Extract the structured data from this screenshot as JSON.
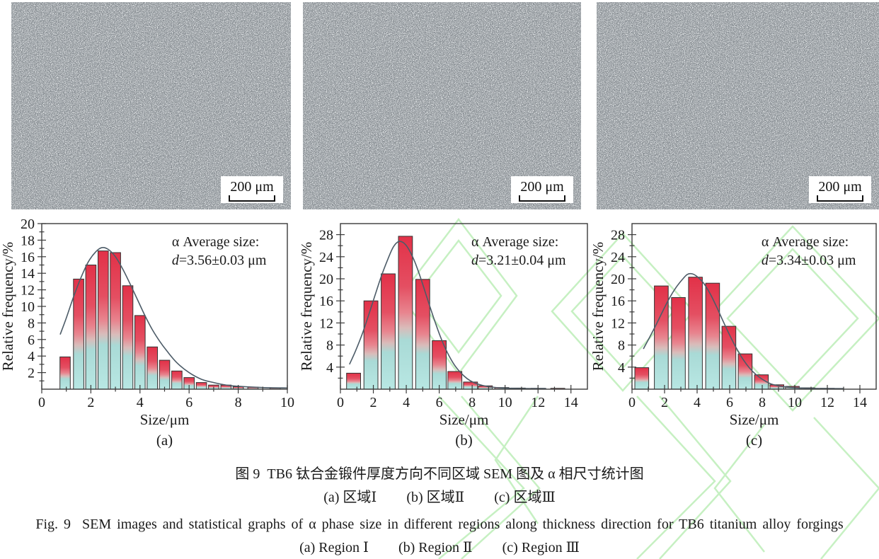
{
  "figure": {
    "zh_title": "图 9  TB6 钛合金锻件厚度方向不同区域 SEM 图及 α 相尺寸统计图",
    "zh_sub_items": [
      "(a) 区域Ⅰ",
      "(b) 区域Ⅱ",
      "(c) 区域Ⅲ"
    ],
    "en_title": "Fig. 9  SEM images and statistical graphs of α phase size in different regions along thickness direction for TB6 titanium alloy forgings",
    "en_sub_items": [
      "(a) Region Ⅰ",
      "(b) Region Ⅱ",
      "(c) Region Ⅲ"
    ]
  },
  "sem_images": [
    {
      "region": "区域Ⅰ",
      "scale_label": "200 μm"
    },
    {
      "region": "区域Ⅱ",
      "scale_label": "200 μm"
    },
    {
      "region": "区域Ⅲ",
      "scale_label": "200 μm"
    }
  ],
  "colors": {
    "bar_top": "#e23148",
    "bar_mid": "#e8858f",
    "bar_bottom": "#b8e7e3",
    "curve": "#4d5c68",
    "axis": "#3a3a3a",
    "text": "#1a1a1a",
    "watermark": "#bdeeb8",
    "sem_gray": "#878d92"
  },
  "chart_data": [
    {
      "type": "bar",
      "panel": "(a)",
      "xlabel": "Size/μm",
      "ylabel": "Relative frequency/%",
      "annotation": {
        "line1": "α Average size:",
        "d": "d",
        "value": "=3.56±0.03 μm"
      },
      "xlim": [
        0,
        10
      ],
      "ylim": [
        0,
        20
      ],
      "xticks": [
        0,
        2,
        4,
        6,
        8,
        10
      ],
      "yticks": [
        2,
        4,
        6,
        8,
        10,
        12,
        14,
        16,
        18,
        20
      ],
      "x_minor": [
        1,
        3,
        5,
        7,
        9
      ],
      "y_minor": [
        1,
        3,
        5,
        7,
        9,
        11,
        13,
        15,
        17,
        19
      ],
      "grid": false,
      "bar_width": 0.42,
      "bars": [
        [
          0.95,
          3.9
        ],
        [
          1.5,
          13.3
        ],
        [
          2.0,
          15.0
        ],
        [
          2.5,
          16.7
        ],
        [
          3.0,
          16.5
        ],
        [
          3.5,
          12.5
        ],
        [
          4.0,
          8.9
        ],
        [
          4.5,
          5.1
        ],
        [
          5.0,
          3.5
        ],
        [
          5.5,
          2.2
        ],
        [
          6.0,
          1.4
        ],
        [
          6.5,
          0.8
        ],
        [
          7.0,
          0.5
        ],
        [
          7.5,
          0.5
        ],
        [
          8.0,
          0.3
        ],
        [
          8.6,
          0.25
        ],
        [
          9.5,
          0.15
        ]
      ],
      "curve": [
        [
          0.75,
          6.6
        ],
        [
          1.0,
          8.6
        ],
        [
          1.3,
          11.2
        ],
        [
          1.6,
          13.5
        ],
        [
          1.9,
          15.4
        ],
        [
          2.2,
          16.6
        ],
        [
          2.45,
          17.1
        ],
        [
          2.7,
          16.9
        ],
        [
          3.0,
          16.0
        ],
        [
          3.3,
          14.5
        ],
        [
          3.6,
          12.7
        ],
        [
          3.9,
          10.8
        ],
        [
          4.2,
          8.9
        ],
        [
          4.5,
          7.2
        ],
        [
          4.8,
          5.8
        ],
        [
          5.1,
          4.6
        ],
        [
          5.5,
          3.2
        ],
        [
          6.0,
          2.0
        ],
        [
          6.5,
          1.2
        ],
        [
          7.0,
          0.8
        ],
        [
          7.5,
          0.5
        ],
        [
          8.0,
          0.35
        ],
        [
          9.0,
          0.2
        ],
        [
          10.0,
          0.15
        ]
      ]
    },
    {
      "type": "bar",
      "panel": "(b)",
      "xlabel": "Size/μm",
      "ylabel": "Relative frequency/%",
      "annotation": {
        "line1": "α Average size:",
        "d": "d",
        "value": "=3.21±0.04 μm"
      },
      "xlim": [
        0,
        15
      ],
      "ylim": [
        0,
        30
      ],
      "xticks": [
        0,
        2,
        4,
        6,
        8,
        10,
        12,
        14
      ],
      "yticks": [
        4,
        8,
        12,
        16,
        20,
        24,
        28
      ],
      "x_minor": [
        1,
        3,
        5,
        7,
        9,
        11,
        13
      ],
      "y_minor": [
        2,
        6,
        10,
        14,
        18,
        22,
        26
      ],
      "grid": false,
      "bar_width": 0.85,
      "bars": [
        [
          0.8,
          2.9
        ],
        [
          1.85,
          16.0
        ],
        [
          2.9,
          20.9
        ],
        [
          3.95,
          27.7
        ],
        [
          5.0,
          19.9
        ],
        [
          6.0,
          8.8
        ],
        [
          6.95,
          3.2
        ],
        [
          7.9,
          1.3
        ],
        [
          8.8,
          0.6
        ],
        [
          9.8,
          0.3
        ],
        [
          10.8,
          0.2
        ],
        [
          12.0,
          0.12
        ],
        [
          13.2,
          0.1
        ]
      ],
      "curve": [
        [
          0.55,
          4.5
        ],
        [
          0.9,
          6.8
        ],
        [
          1.3,
          9.8
        ],
        [
          1.7,
          13.3
        ],
        [
          2.1,
          17.0
        ],
        [
          2.5,
          20.6
        ],
        [
          2.9,
          23.7
        ],
        [
          3.2,
          25.7
        ],
        [
          3.5,
          26.7
        ],
        [
          3.8,
          26.6
        ],
        [
          4.1,
          25.6
        ],
        [
          4.5,
          23.2
        ],
        [
          4.9,
          19.9
        ],
        [
          5.3,
          16.2
        ],
        [
          5.7,
          12.6
        ],
        [
          6.1,
          9.3
        ],
        [
          6.5,
          6.6
        ],
        [
          6.9,
          4.5
        ],
        [
          7.3,
          3.0
        ],
        [
          7.7,
          1.9
        ],
        [
          8.1,
          1.2
        ],
        [
          8.6,
          0.7
        ],
        [
          9.1,
          0.4
        ],
        [
          10.0,
          0.2
        ],
        [
          11.0,
          0.12
        ],
        [
          12.5,
          0.1
        ]
      ]
    },
    {
      "type": "bar",
      "panel": "(c)",
      "xlabel": "Size/μm",
      "ylabel": "Relative frequency/%",
      "annotation": {
        "line1": "α Average size:",
        "d": "d",
        "value": "=3.34±0.03 μm"
      },
      "xlim": [
        0,
        15
      ],
      "ylim": [
        0,
        30
      ],
      "xticks": [
        0,
        2,
        4,
        6,
        8,
        10,
        12,
        14
      ],
      "yticks": [
        4,
        8,
        12,
        16,
        20,
        24,
        28
      ],
      "x_minor": [
        1,
        3,
        5,
        7,
        9,
        11,
        13
      ],
      "y_minor": [
        2,
        6,
        10,
        14,
        18,
        22,
        26
      ],
      "grid": false,
      "bar_width": 0.85,
      "bars": [
        [
          0.6,
          3.9
        ],
        [
          1.8,
          18.7
        ],
        [
          2.85,
          16.6
        ],
        [
          3.9,
          20.3
        ],
        [
          4.95,
          19.2
        ],
        [
          5.95,
          11.4
        ],
        [
          6.95,
          6.4
        ],
        [
          7.95,
          2.6
        ],
        [
          8.9,
          0.8
        ],
        [
          9.85,
          0.5
        ],
        [
          10.8,
          0.25
        ],
        [
          12.0,
          0.12
        ]
      ],
      "curve": [
        [
          0.7,
          7.3
        ],
        [
          1.1,
          9.5
        ],
        [
          1.5,
          11.8
        ],
        [
          1.9,
          14.2
        ],
        [
          2.3,
          16.5
        ],
        [
          2.7,
          18.4
        ],
        [
          3.1,
          19.9
        ],
        [
          3.4,
          20.8
        ],
        [
          3.7,
          20.9
        ],
        [
          4.0,
          20.4
        ],
        [
          4.4,
          19.2
        ],
        [
          4.8,
          17.3
        ],
        [
          5.2,
          14.9
        ],
        [
          5.6,
          12.3
        ],
        [
          6.0,
          9.8
        ],
        [
          6.4,
          7.5
        ],
        [
          6.8,
          5.5
        ],
        [
          7.2,
          3.9
        ],
        [
          7.6,
          2.7
        ],
        [
          8.0,
          1.8
        ],
        [
          8.5,
          1.0
        ],
        [
          9.0,
          0.6
        ],
        [
          9.6,
          0.35
        ],
        [
          10.4,
          0.2
        ],
        [
          11.5,
          0.12
        ],
        [
          13.0,
          0.1
        ]
      ]
    }
  ]
}
